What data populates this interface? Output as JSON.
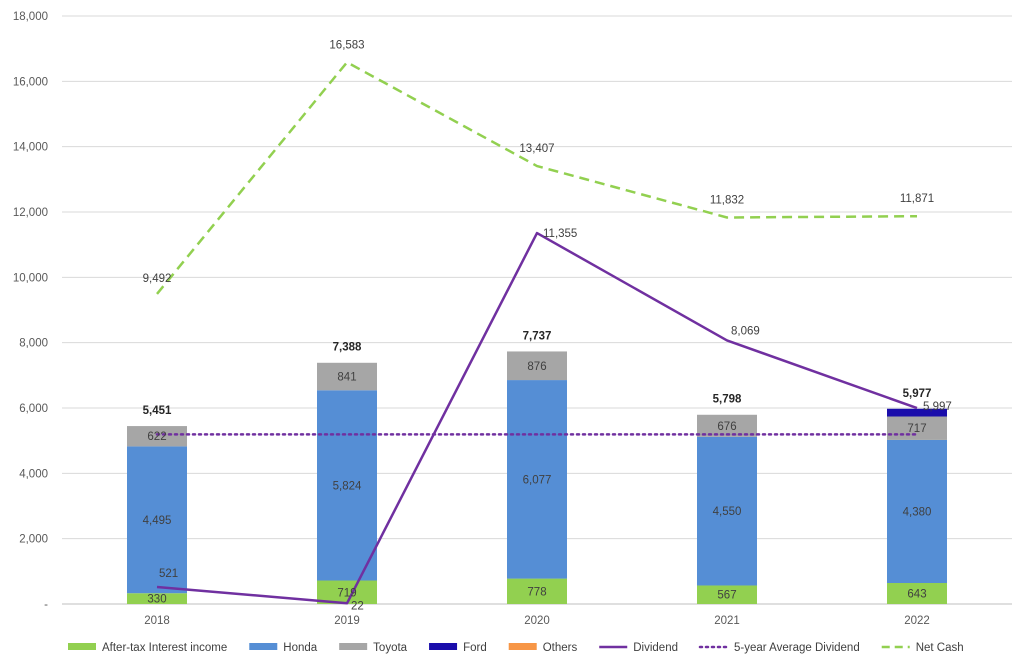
{
  "chart_data": {
    "type": "bar",
    "stacked": true,
    "categories": [
      "2018",
      "2019",
      "2020",
      "2021",
      "2022"
    ],
    "ylim": [
      0,
      18000
    ],
    "yticks": [
      0,
      2000,
      4000,
      6000,
      8000,
      10000,
      12000,
      14000,
      16000,
      18000
    ],
    "ytick_labels": [
      "-",
      "2,000",
      "4,000",
      "6,000",
      "8,000",
      "10,000",
      "12,000",
      "14,000",
      "16,000",
      "18,000"
    ],
    "grid": true,
    "legend_position": "bottom",
    "bar_series": [
      {
        "name": "After-tax Interest income",
        "color": "#92d050",
        "values": [
          330,
          719,
          778,
          567,
          643
        ],
        "labels": [
          "330",
          "719",
          "778",
          "567",
          "643"
        ]
      },
      {
        "name": "Honda",
        "color": "#558ed5",
        "values": [
          4495,
          5824,
          6077,
          4550,
          4380
        ],
        "labels": [
          "4,495",
          "5,824",
          "6,077",
          "4,550",
          "4,380"
        ]
      },
      {
        "name": "Toyota",
        "color": "#a6a6a6",
        "values": [
          622,
          841,
          876,
          676,
          717
        ],
        "labels": [
          "622",
          "841",
          "876",
          "676",
          "717"
        ]
      },
      {
        "name": "Ford",
        "color": "#1a0dab",
        "values": [
          0,
          0,
          0,
          0,
          237
        ],
        "labels": [
          "",
          "",
          "",
          "",
          ""
        ]
      },
      {
        "name": "Others",
        "color": "#f79646",
        "values": [
          0,
          0,
          0,
          0,
          0
        ],
        "labels": [
          "",
          "",
          "",
          "",
          ""
        ]
      }
    ],
    "totals": [
      5451,
      7388,
      7737,
      5798,
      5977
    ],
    "total_labels": [
      "5,451",
      "7,388",
      "7,737",
      "5,798",
      "5,977"
    ],
    "line_series": [
      {
        "name": "Dividend",
        "color": "#7030a0",
        "style": "solid",
        "values": [
          521,
          22,
          11355,
          8069,
          5997
        ],
        "labels": [
          "521",
          "22",
          "11,355",
          "8,069",
          "5,997"
        ]
      },
      {
        "name": "5-year Average Dividend",
        "color": "#7030a0",
        "style": "dotted",
        "values": [
          5193,
          5193,
          5193,
          5193,
          5193
        ],
        "labels": [
          "",
          "",
          "",
          "",
          ""
        ]
      },
      {
        "name": "Net Cash",
        "color": "#92d050",
        "style": "dashed",
        "values": [
          9492,
          16583,
          13407,
          11832,
          11871
        ],
        "labels": [
          "9,492",
          "16,583",
          "13,407",
          "11,832",
          "11,871"
        ]
      }
    ],
    "legend": [
      {
        "name": "After-tax Interest income",
        "kind": "box",
        "color": "#92d050"
      },
      {
        "name": "Honda",
        "kind": "box",
        "color": "#558ed5"
      },
      {
        "name": "Toyota",
        "kind": "box",
        "color": "#a6a6a6"
      },
      {
        "name": "Ford",
        "kind": "box",
        "color": "#1a0dab"
      },
      {
        "name": "Others",
        "kind": "box",
        "color": "#f79646"
      },
      {
        "name": "Dividend",
        "kind": "solid",
        "color": "#7030a0"
      },
      {
        "name": "5-year Average Dividend",
        "kind": "dotted",
        "color": "#7030a0"
      },
      {
        "name": "Net Cash",
        "kind": "dashed",
        "color": "#92d050"
      }
    ]
  }
}
